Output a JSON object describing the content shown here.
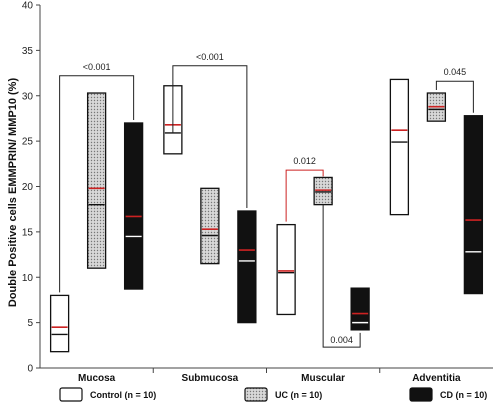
{
  "chart_data": {
    "type": "box",
    "ylabel": "Double Positive  cells EMMPRIN/ MMP10  (%)",
    "ylim": [
      0,
      40
    ],
    "yticks": [
      "0",
      "5",
      "10",
      "15",
      "20",
      "25",
      "30",
      "35",
      "40"
    ],
    "categories": [
      "Mucosa",
      "Submucosa",
      "Muscular",
      "Adventitia"
    ],
    "series": [
      {
        "name": "Control (n = 10)",
        "fill": "#ffffff",
        "boxes": [
          {
            "low": 1.8,
            "high": 8.0,
            "median": 3.7,
            "mean": 4.5
          },
          {
            "low": 23.6,
            "high": 31.1,
            "median": 25.9,
            "mean": 26.8
          },
          {
            "low": 5.9,
            "high": 15.8,
            "median": 10.5,
            "mean": 10.7
          },
          {
            "low": 16.9,
            "high": 31.8,
            "median": 24.9,
            "mean": 26.2
          }
        ]
      },
      {
        "name": "UC (n = 10)",
        "fill": "#c8c8c8",
        "boxes": [
          {
            "low": 11.0,
            "high": 30.3,
            "median": 18.0,
            "mean": 19.8
          },
          {
            "low": 11.5,
            "high": 19.8,
            "median": 14.6,
            "mean": 15.3
          },
          {
            "low": 18.0,
            "high": 21.0,
            "median": 19.4,
            "mean": 19.6
          },
          {
            "low": 27.2,
            "high": 30.3,
            "median": 28.5,
            "mean": 28.8
          }
        ]
      },
      {
        "name": "CD (n = 10)",
        "fill": "#111111",
        "boxes": [
          {
            "low": 8.7,
            "high": 27.0,
            "median": 14.5,
            "mean": 16.7
          },
          {
            "low": 5.0,
            "high": 17.3,
            "median": 11.8,
            "mean": 13.0
          },
          {
            "low": 4.2,
            "high": 8.8,
            "median": 5.0,
            "mean": 6.0
          },
          {
            "low": 8.2,
            "high": 27.8,
            "median": 12.8,
            "mean": 16.3
          }
        ]
      }
    ],
    "annotations": [
      {
        "text": "<0.001",
        "group": 0,
        "color": "#222222"
      },
      {
        "text": "<0.001",
        "group": 1,
        "color": "#222222"
      },
      {
        "text": "0.012",
        "group": 2,
        "color": "#cc2222"
      },
      {
        "text": "0.004",
        "group": 2,
        "color": "#222222"
      },
      {
        "text": "0.045",
        "group": 3,
        "color": "#222222"
      }
    ],
    "legend_position": "bottom",
    "grid": false,
    "colors": {
      "median": "#ffffff",
      "mean": "#cc2222"
    }
  }
}
